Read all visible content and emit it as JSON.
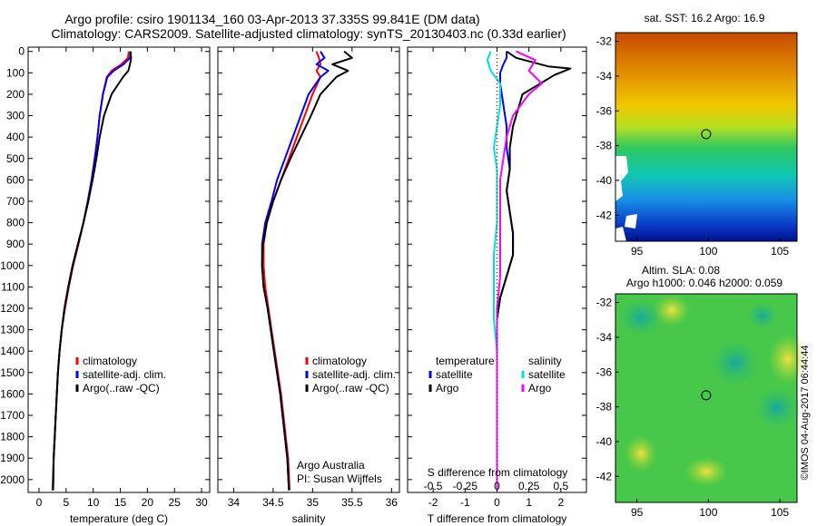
{
  "header": {
    "line1": "Argo profile: csiro 1901134_160 03-Apr-2013 37.335S 99.841E (DM data)",
    "line2": "Climatology: CARS2009. Satellite-adjusted climatology: synTS_20130403.nc (0.33d earlier)"
  },
  "footer_stamp": "©IMOS 04-Aug-2017 06:44:44",
  "colors": {
    "climatology": "#ff0000",
    "satellite": "#0000ff",
    "argo": "#000000",
    "sat_diff_s": "#00e0e0",
    "argo_diff_s": "#ff00ff"
  },
  "chart_data": [
    {
      "type": "line",
      "id": "temperature",
      "xlabel": "temperature (deg C)",
      "ylabel": "",
      "xlim": [
        -2,
        31.5
      ],
      "ylim": [
        2060,
        0
      ],
      "xticks": [
        "0",
        "5",
        "10",
        "15",
        "20",
        "25",
        "30"
      ],
      "xtick_values": [
        0,
        5,
        10,
        15,
        20,
        25,
        30
      ],
      "yticks": [
        "0",
        "100",
        "200",
        "300",
        "400",
        "500",
        "600",
        "700",
        "800",
        "900",
        "1000",
        "1100",
        "1200",
        "1300",
        "1400",
        "1500",
        "1600",
        "1700",
        "1800",
        "1900",
        "2000"
      ],
      "ytick_values": [
        0,
        100,
        200,
        300,
        400,
        500,
        600,
        700,
        800,
        900,
        1000,
        1100,
        1200,
        1300,
        1400,
        1500,
        1600,
        1700,
        1800,
        1900,
        2000
      ],
      "legend": [
        "climatology",
        "satellite-adj. clim.",
        "Argo(..raw -QC)"
      ],
      "series": [
        {
          "name": "climatology",
          "x": [
            16.6,
            16.4,
            15.2,
            13.4,
            12.5,
            11.8,
            11.2,
            10.8,
            10.3,
            9.7,
            9.0,
            8.2,
            7.3,
            6.3,
            5.5,
            4.8,
            4.2,
            3.8,
            3.5,
            3.3,
            3.1,
            2.9,
            2.7,
            2.5
          ],
          "y": [
            0,
            30,
            60,
            90,
            120,
            200,
            300,
            400,
            500,
            600,
            700,
            800,
            900,
            1000,
            1100,
            1200,
            1300,
            1400,
            1500,
            1600,
            1700,
            1800,
            1900,
            2050
          ]
        },
        {
          "name": "satellite-adj. clim.",
          "x": [
            16.9,
            16.8,
            15.6,
            13.8,
            12.6,
            11.8,
            11.2,
            10.8,
            10.3,
            9.7,
            9.0,
            8.2,
            7.2,
            6.2,
            5.4,
            4.7,
            4.2,
            3.8,
            3.5,
            3.3,
            3.1,
            2.9,
            2.7,
            2.6
          ],
          "y": [
            0,
            30,
            60,
            90,
            120,
            200,
            300,
            400,
            500,
            600,
            700,
            800,
            900,
            1000,
            1100,
            1200,
            1300,
            1400,
            1500,
            1600,
            1700,
            1800,
            1900,
            2050
          ]
        },
        {
          "name": "Argo(..raw -QC)",
          "x": [
            16.9,
            17.0,
            16.8,
            16.5,
            15.5,
            13.4,
            12.0,
            11.2,
            10.6,
            9.9,
            9.1,
            8.2,
            7.2,
            6.2,
            5.4,
            4.7,
            4.2,
            3.8,
            3.5,
            3.3,
            3.1,
            2.9,
            2.7,
            2.6
          ],
          "y": [
            0,
            30,
            60,
            90,
            120,
            200,
            300,
            400,
            500,
            600,
            700,
            800,
            900,
            1000,
            1100,
            1200,
            1300,
            1400,
            1500,
            1600,
            1700,
            1800,
            1900,
            2050
          ]
        }
      ]
    },
    {
      "type": "line",
      "id": "salinity",
      "xlabel": "salinity",
      "xlim": [
        33.8,
        36.1
      ],
      "ylim": [
        2060,
        0
      ],
      "xticks": [
        "34",
        "34.5",
        "35",
        "35.5",
        "36"
      ],
      "xtick_values": [
        34,
        34.5,
        35,
        35.5,
        36
      ],
      "legend": [
        "climatology",
        "satellite-adj. clim.",
        "Argo(..raw -QC)"
      ],
      "annotation": [
        "Argo Australia",
        "PI: Susan Wijffels"
      ],
      "series": [
        {
          "name": "climatology",
          "x": [
            35.05,
            35.08,
            35.1,
            35.05,
            35.1,
            35.0,
            34.9,
            34.8,
            34.7,
            34.6,
            34.5,
            34.42,
            34.38,
            34.38,
            34.4,
            34.44,
            34.48,
            34.52,
            34.56,
            34.6,
            34.63,
            34.66,
            34.69,
            34.71
          ],
          "y": [
            0,
            30,
            60,
            90,
            120,
            200,
            300,
            400,
            500,
            600,
            700,
            800,
            900,
            1000,
            1100,
            1200,
            1300,
            1400,
            1500,
            1600,
            1700,
            1800,
            1900,
            2050
          ]
        },
        {
          "name": "satellite-adj. clim.",
          "x": [
            35.1,
            35.15,
            35.05,
            35.2,
            35.1,
            34.95,
            34.85,
            34.75,
            34.65,
            34.55,
            34.48,
            34.4,
            34.36,
            34.36,
            34.38,
            34.43,
            34.47,
            34.51,
            34.55,
            34.59,
            34.62,
            34.65,
            34.68,
            34.7
          ],
          "y": [
            0,
            30,
            60,
            90,
            120,
            200,
            300,
            400,
            500,
            600,
            700,
            800,
            900,
            1000,
            1100,
            1200,
            1300,
            1400,
            1500,
            1600,
            1700,
            1800,
            1900,
            2050
          ]
        },
        {
          "name": "Argo(..raw -QC)",
          "x": [
            35.4,
            35.5,
            35.25,
            35.45,
            35.3,
            35.1,
            34.98,
            34.85,
            34.72,
            34.6,
            34.5,
            34.42,
            34.37,
            34.36,
            34.38,
            34.43,
            34.47,
            34.51,
            34.55,
            34.59,
            34.62,
            34.65,
            34.68,
            34.7
          ],
          "y": [
            0,
            30,
            60,
            90,
            120,
            200,
            300,
            400,
            500,
            600,
            700,
            800,
            900,
            1000,
            1100,
            1200,
            1300,
            1400,
            1500,
            1600,
            1700,
            1800,
            1900,
            2050
          ]
        }
      ]
    },
    {
      "type": "line",
      "id": "difference",
      "xlabel": "T difference from climatology",
      "xlabel_top": "S difference from climatology",
      "xlim": [
        -2.8,
        2.8
      ],
      "ylim": [
        2060,
        0
      ],
      "xticks": [
        "-2",
        "-1",
        "0",
        "1",
        "2"
      ],
      "xtick_values": [
        -2,
        -1,
        0,
        1,
        2
      ],
      "s_ticks": [
        "-0.5",
        "-0.25",
        "0",
        "0.25",
        "0.5"
      ],
      "s_tick_values": [
        -2,
        -1,
        0,
        1,
        2
      ],
      "legend_titles": [
        "temperature",
        "salinity"
      ],
      "legend_left": [
        "satellite",
        "Argo"
      ],
      "legend_right": [
        "satellite",
        "Argo"
      ],
      "series": [
        {
          "name": "temperature satellite",
          "x": [
            0.3,
            0.3,
            0.2,
            0.1,
            0.1,
            0.2,
            0.3,
            0.3,
            0.4,
            0.3,
            0.4,
            0.5,
            0.5,
            0.3,
            0.1,
            0.0,
            0.0,
            0.0,
            0.0,
            0.0,
            0.0,
            0.0,
            0.0
          ],
          "y": [
            0,
            30,
            60,
            100,
            150,
            250,
            350,
            450,
            550,
            650,
            750,
            850,
            950,
            1050,
            1150,
            1250,
            1400,
            1500,
            1600,
            1700,
            1800,
            1900,
            2050
          ]
        },
        {
          "name": "temperature Argo",
          "x": [
            0.3,
            0.6,
            1.6,
            2.3,
            1.8,
            0.8,
            0.5,
            0.4,
            0.4,
            0.3,
            0.4,
            0.5,
            0.5,
            0.3,
            0.1,
            0.0,
            0.0,
            0.0,
            0.0,
            0.0,
            0.0,
            0.0,
            0.0
          ],
          "y": [
            0,
            30,
            70,
            80,
            110,
            200,
            350,
            450,
            550,
            650,
            750,
            850,
            950,
            1050,
            1150,
            1250,
            1400,
            1500,
            1600,
            1700,
            1800,
            1900,
            2050
          ]
        },
        {
          "name": "salinity satellite",
          "x": [
            -0.2,
            -0.3,
            -0.2,
            0.1,
            0.1,
            0.0,
            -0.1,
            0.0,
            0.0,
            0.0,
            -0.1,
            -0.1,
            -0.1,
            0.0,
            0.0,
            0.0,
            0.0,
            0.0
          ],
          "y": [
            0,
            40,
            90,
            150,
            250,
            350,
            450,
            550,
            650,
            800,
            950,
            1100,
            1250,
            1400,
            1550,
            1700,
            1850,
            2050
          ]
        },
        {
          "name": "salinity Argo",
          "x": [
            0.6,
            1.2,
            1.0,
            1.4,
            1.0,
            0.5,
            0.3,
            0.2,
            0.1,
            0.1,
            0.1,
            0.1,
            0.0,
            0.0,
            0.0,
            0.0,
            0.0,
            0.0
          ],
          "y": [
            0,
            40,
            90,
            150,
            200,
            300,
            400,
            500,
            600,
            750,
            900,
            1050,
            1200,
            1350,
            1500,
            1650,
            1800,
            2050
          ]
        }
      ]
    },
    {
      "type": "heatmap",
      "id": "sst_map",
      "title": "sat. SST: 16.2  Argo: 16.9",
      "xticks": [
        "95",
        "100",
        "105"
      ],
      "yticks": [
        "-32",
        "-34",
        "-36",
        "-38",
        "-40",
        "-42"
      ],
      "xlim": [
        93.5,
        106.2
      ],
      "ylim": [
        -43.5,
        -31.5
      ],
      "marker": [
        99.841,
        -37.335
      ]
    },
    {
      "type": "heatmap",
      "id": "sla_map",
      "title_line1": "Altim. SLA: 0.08",
      "title_line2": "Argo h1000: 0.046  h2000: 0.059",
      "xticks": [
        "95",
        "100",
        "105"
      ],
      "yticks": [
        "-32",
        "-34",
        "-36",
        "-38",
        "-40",
        "-42"
      ],
      "xlim": [
        93.5,
        106.2
      ],
      "ylim": [
        -43.5,
        -31.5
      ],
      "marker": [
        99.841,
        -37.335
      ]
    }
  ]
}
